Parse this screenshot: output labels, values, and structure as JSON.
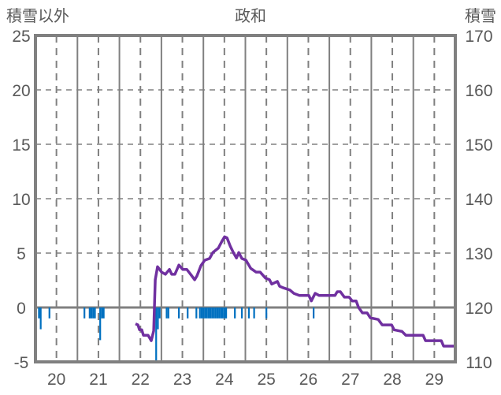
{
  "chart_data": {
    "type": "bar+line",
    "title": "政和",
    "ylabel_left": "積雪以外",
    "ylabel_right": "積雪",
    "xlim_hours": [
      0,
      240
    ],
    "ylim_left": [
      -5,
      25
    ],
    "ylim_right": [
      110,
      170
    ],
    "left_ticks": [
      "25",
      "20",
      "15",
      "10",
      "5",
      "0",
      "-5"
    ],
    "left_tick_values": [
      25,
      20,
      15,
      10,
      5,
      0,
      -5
    ],
    "right_ticks": [
      "170",
      "160",
      "150",
      "140",
      "130",
      "120",
      "110"
    ],
    "right_tick_values": [
      170,
      160,
      150,
      140,
      130,
      120,
      110
    ],
    "x_tick_labels": [
      "20",
      "21",
      "22",
      "23",
      "24",
      "25",
      "26",
      "27",
      "28",
      "29"
    ],
    "grid": true,
    "colors": {
      "bars": "#0070c0",
      "line": "#7030a0",
      "frame": "#808080"
    },
    "bars_series": {
      "name": "積雪以外",
      "axis": "left",
      "data": [
        [
          2,
          -1
        ],
        [
          3,
          -2
        ],
        [
          8,
          -1
        ],
        [
          28,
          -1
        ],
        [
          31,
          -1
        ],
        [
          32,
          -1
        ],
        [
          33,
          -1
        ],
        [
          34,
          -1
        ],
        [
          37,
          -3
        ],
        [
          38,
          -1
        ],
        [
          39,
          -1
        ],
        [
          69,
          -5
        ],
        [
          70,
          -2
        ],
        [
          71,
          -1
        ],
        [
          75,
          -1
        ],
        [
          76,
          -1
        ],
        [
          82,
          -1
        ],
        [
          87,
          -1
        ],
        [
          92,
          -1
        ],
        [
          94,
          -1
        ],
        [
          95,
          -1
        ],
        [
          96,
          -1
        ],
        [
          97,
          -1
        ],
        [
          98,
          -1
        ],
        [
          99,
          -1
        ],
        [
          100,
          -1
        ],
        [
          101,
          -1
        ],
        [
          102,
          -1
        ],
        [
          103,
          -1
        ],
        [
          104,
          -1
        ],
        [
          105,
          -1
        ],
        [
          106,
          -1
        ],
        [
          107,
          -1
        ],
        [
          108,
          -1
        ],
        [
          109,
          -1
        ],
        [
          114,
          -1
        ],
        [
          118,
          -1
        ],
        [
          122,
          -1
        ],
        [
          125,
          -1
        ],
        [
          132,
          -1
        ],
        [
          159,
          -1
        ]
      ]
    },
    "line_series": {
      "name": "積雪",
      "axis": "right",
      "data": [
        [
          57.2,
          117
        ],
        [
          58.6,
          116.8
        ],
        [
          59.5,
          115.9
        ],
        [
          60.8,
          115.9
        ],
        [
          61.7,
          114.9
        ],
        [
          64.4,
          114.9
        ],
        [
          66.2,
          113.9
        ],
        [
          67.6,
          115.7
        ],
        [
          68.5,
          125.1
        ],
        [
          69.8,
          127.5
        ],
        [
          72.1,
          126.5
        ],
        [
          74.3,
          126.1
        ],
        [
          76.6,
          127
        ],
        [
          77.9,
          126.1
        ],
        [
          79.7,
          126.1
        ],
        [
          82,
          127.8
        ],
        [
          84.2,
          127
        ],
        [
          86.5,
          127
        ],
        [
          88.7,
          126.1
        ],
        [
          91,
          125.1
        ],
        [
          92.3,
          125.8
        ],
        [
          94.6,
          127.7
        ],
        [
          96.8,
          128.7
        ],
        [
          99.5,
          129
        ],
        [
          101.4,
          130.1
        ],
        [
          104.5,
          130.9
        ],
        [
          106.8,
          132.3
        ],
        [
          108.1,
          133
        ],
        [
          109.5,
          132.8
        ],
        [
          111.3,
          131.3
        ],
        [
          113.1,
          130.1
        ],
        [
          114.9,
          129.1
        ],
        [
          116.2,
          130.1
        ],
        [
          118,
          129
        ],
        [
          120.3,
          128.7
        ],
        [
          123,
          127.2
        ],
        [
          126.1,
          126.5
        ],
        [
          128.4,
          126.5
        ],
        [
          131.5,
          125.4
        ],
        [
          133.8,
          125.1
        ],
        [
          135.1,
          124.3
        ],
        [
          138.3,
          124.8
        ],
        [
          139.6,
          123.9
        ],
        [
          141.9,
          123.6
        ],
        [
          145.5,
          123.2
        ],
        [
          147.7,
          122.6
        ],
        [
          150.9,
          122.2
        ],
        [
          156.3,
          122.2
        ],
        [
          157.7,
          121.2
        ],
        [
          159.9,
          122.6
        ],
        [
          162.2,
          122.2
        ],
        [
          171.2,
          122.2
        ],
        [
          172.5,
          122.9
        ],
        [
          174.3,
          122.9
        ],
        [
          176.6,
          121.9
        ],
        [
          179.3,
          121.9
        ],
        [
          181.1,
          121.2
        ],
        [
          183.3,
          121.2
        ],
        [
          184.7,
          120
        ],
        [
          186.9,
          119
        ],
        [
          189.6,
          119
        ],
        [
          191.4,
          118.1
        ],
        [
          195.9,
          117.8
        ],
        [
          198.2,
          116.8
        ],
        [
          203.6,
          116.8
        ],
        [
          205,
          115.9
        ],
        [
          209.5,
          115.6
        ],
        [
          211.7,
          114.9
        ],
        [
          221.6,
          114.9
        ],
        [
          223,
          113.9
        ],
        [
          232,
          113.9
        ],
        [
          233.3,
          112.9
        ],
        [
          240,
          112.9
        ]
      ]
    }
  }
}
